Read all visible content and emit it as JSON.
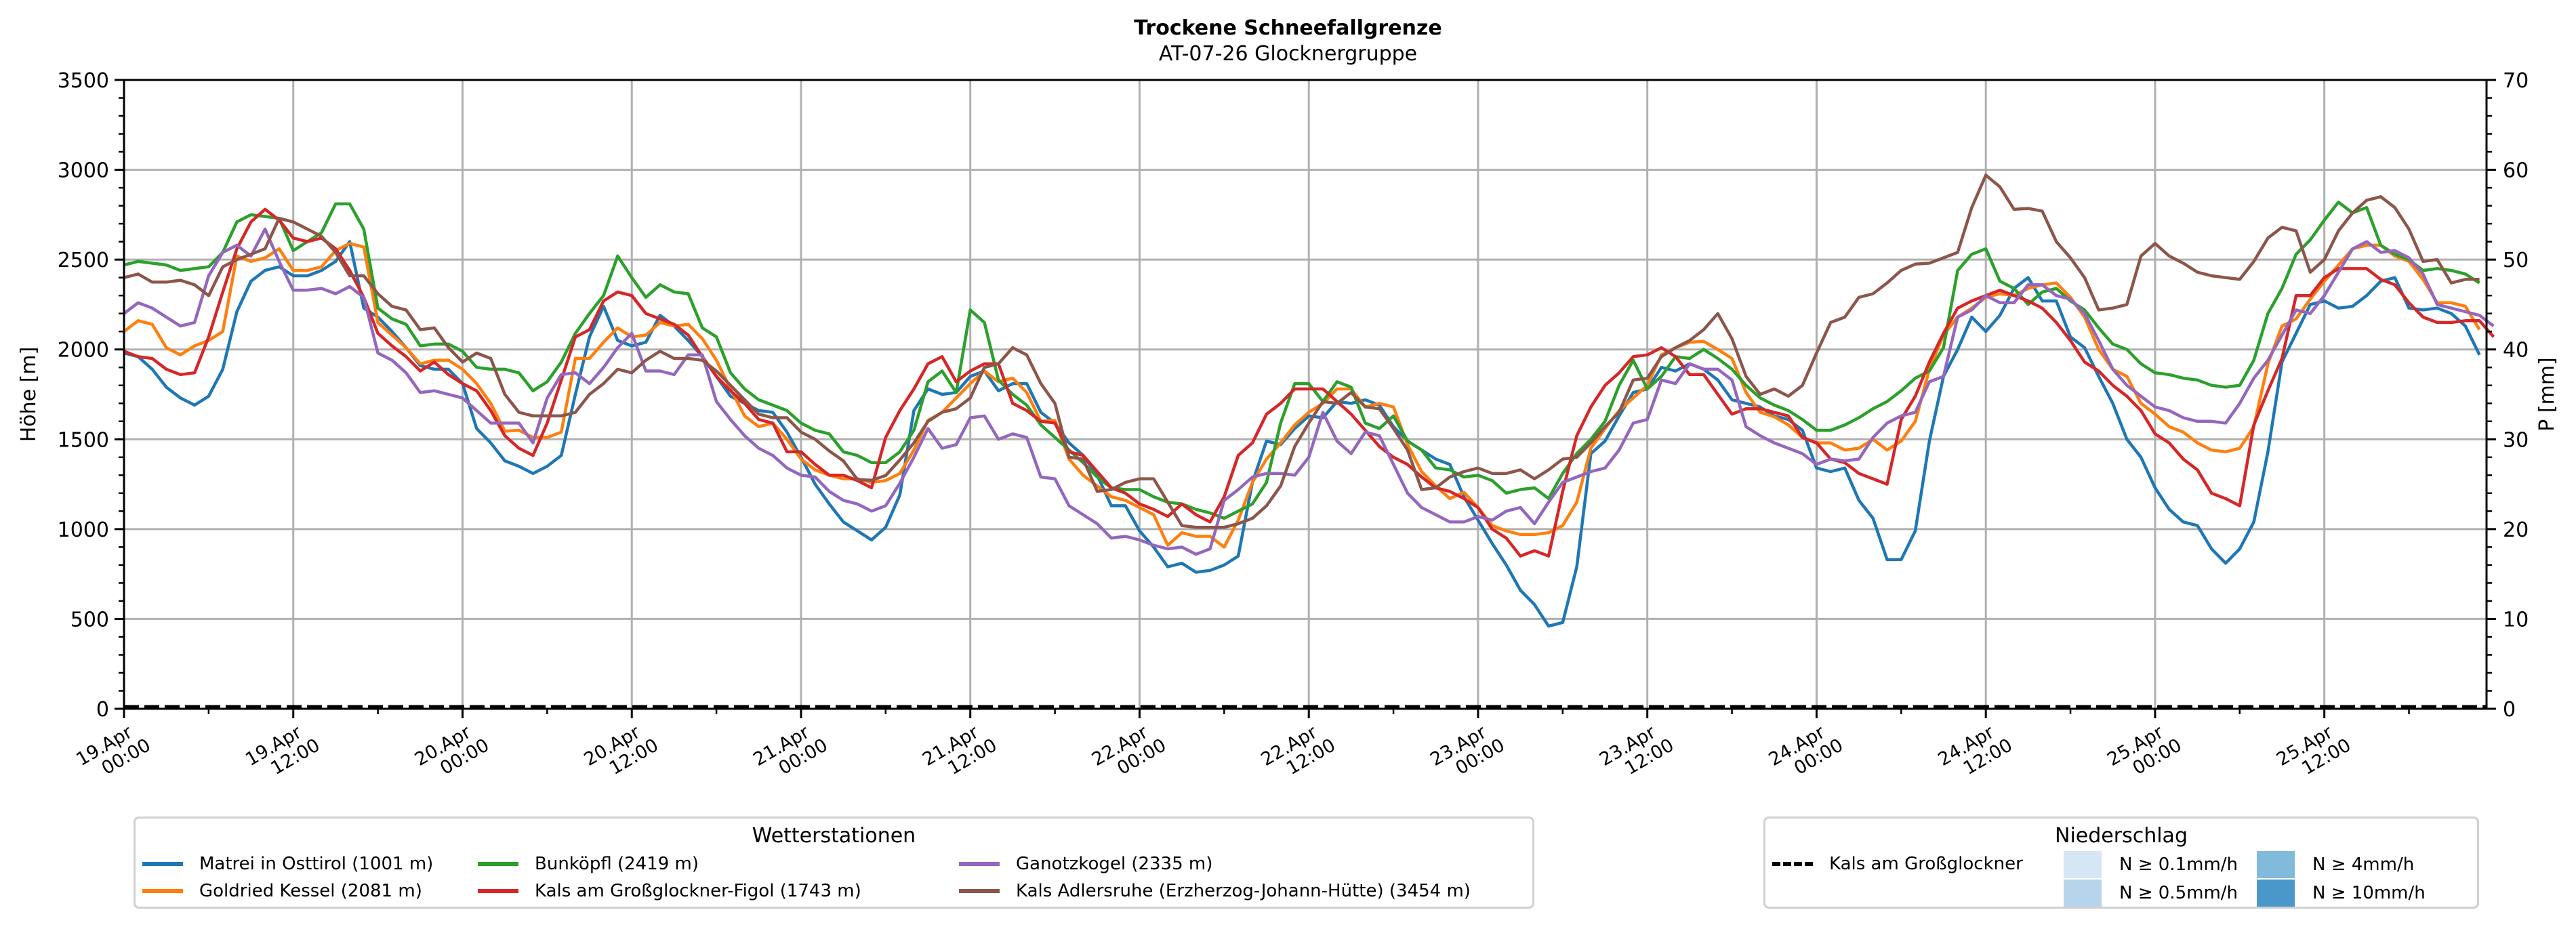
{
  "chart_data": {
    "type": "line",
    "title": "Trockene Schneefallgrenze",
    "subtitle": "AT-07-26 Glocknergruppe",
    "ylabel": "Höhe [m]",
    "ylabel_right": "P [mm]",
    "ylim": [
      0,
      3500
    ],
    "ylim_right": [
      0,
      70
    ],
    "yticks": [
      "0",
      "500",
      "1000",
      "1500",
      "2000",
      "2500",
      "3000",
      "3500"
    ],
    "yticks_right": [
      "0",
      "10",
      "20",
      "30",
      "40",
      "50",
      "60",
      "70"
    ],
    "x_unit": "hours since 19.Apr 00:00",
    "xlim": [
      0,
      167.5
    ],
    "xticks": [
      {
        "line1": "19.Apr",
        "line2": "00:00"
      },
      {
        "line1": "19.Apr",
        "line2": "12:00"
      },
      {
        "line1": "20.Apr",
        "line2": "00:00"
      },
      {
        "line1": "20.Apr",
        "line2": "12:00"
      },
      {
        "line1": "21.Apr",
        "line2": "00:00"
      },
      {
        "line1": "21.Apr",
        "line2": "12:00"
      },
      {
        "line1": "22.Apr",
        "line2": "00:00"
      },
      {
        "line1": "22.Apr",
        "line2": "12:00"
      },
      {
        "line1": "23.Apr",
        "line2": "00:00"
      },
      {
        "line1": "23.Apr",
        "line2": "12:00"
      },
      {
        "line1": "24.Apr",
        "line2": "00:00"
      },
      {
        "line1": "24.Apr",
        "line2": "12:00"
      },
      {
        "line1": "25.Apr",
        "line2": "00:00"
      },
      {
        "line1": "25.Apr",
        "line2": "12:00"
      }
    ],
    "grid": true,
    "legend_stations_title": "Wetterstationen",
    "legend_precip_title": "Niederschlag",
    "series": [
      {
        "name": "Matrei in Osttirol (1001 m)",
        "color": "#1f77b4",
        "values": [
          1980,
          1960,
          1890,
          1790,
          1730,
          1690,
          1740,
          1890,
          2210,
          2380,
          2440,
          2460,
          2410,
          2410,
          2440,
          2490,
          2600,
          2230,
          2180,
          2100,
          2010,
          1910,
          1890,
          1890,
          1810,
          1560,
          1480,
          1380,
          1350,
          1310,
          1350,
          1410,
          1750,
          2070,
          2240,
          2050,
          2020,
          2040,
          2190,
          2130,
          2050,
          1960,
          1850,
          1740,
          1700,
          1660,
          1650,
          1540,
          1400,
          1250,
          1140,
          1040,
          990,
          940,
          1010,
          1190,
          1660,
          1780,
          1750,
          1760,
          1850,
          1880,
          1770,
          1810,
          1810,
          1650,
          1590,
          1480,
          1410,
          1300,
          1130,
          1130,
          990,
          900,
          790,
          810,
          760,
          770,
          800,
          850,
          1260,
          1490,
          1470,
          1560,
          1630,
          1620,
          1710,
          1700,
          1720,
          1690,
          1570,
          1490,
          1440,
          1390,
          1360,
          1180,
          1050,
          920,
          800,
          660,
          580,
          460,
          480,
          790,
          1420,
          1490,
          1630,
          1760,
          1780,
          1900,
          1880,
          1920,
          1890,
          1830,
          1720,
          1700,
          1680,
          1630,
          1610,
          1550,
          1340,
          1320,
          1340,
          1160,
          1060,
          830,
          830,
          990,
          1490,
          1850,
          2000,
          2180,
          2100,
          2190,
          2340,
          2400,
          2270,
          2270,
          2070,
          2010,
          1850,
          1700,
          1500,
          1400,
          1230,
          1110,
          1040,
          1020,
          890,
          810,
          890,
          1040,
          1430,
          1930,
          2090,
          2250,
          2270,
          2230,
          2240,
          2300,
          2380,
          2400,
          2230,
          2220,
          2230,
          2200,
          2130,
          1970
        ]
      },
      {
        "name": "Goldried Kessel (2081 m)",
        "color": "#ff7f0e",
        "values": [
          2100,
          2160,
          2140,
          2010,
          1970,
          2020,
          2050,
          2100,
          2520,
          2490,
          2510,
          2560,
          2440,
          2440,
          2460,
          2550,
          2590,
          2570,
          2150,
          2080,
          2010,
          1920,
          1940,
          1940,
          1890,
          1810,
          1700,
          1545,
          1550,
          1510,
          1510,
          1540,
          1950,
          1950,
          2040,
          2120,
          2070,
          2080,
          2150,
          2130,
          2140,
          2060,
          1940,
          1780,
          1630,
          1570,
          1590,
          1500,
          1390,
          1330,
          1300,
          1280,
          1280,
          1260,
          1270,
          1310,
          1440,
          1605,
          1650,
          1730,
          1810,
          1880,
          1820,
          1840,
          1760,
          1600,
          1605,
          1390,
          1300,
          1240,
          1180,
          1160,
          1120,
          1080,
          910,
          980,
          960,
          960,
          900,
          1050,
          1260,
          1390,
          1480,
          1580,
          1650,
          1700,
          1780,
          1780,
          1680,
          1700,
          1680,
          1470,
          1320,
          1240,
          1170,
          1205,
          1120,
          1020,
          990,
          970,
          970,
          980,
          1020,
          1150,
          1450,
          1560,
          1660,
          1730,
          1800,
          1970,
          2010,
          2040,
          2045,
          2000,
          1950,
          1760,
          1650,
          1625,
          1580,
          1510,
          1480,
          1480,
          1440,
          1450,
          1500,
          1440,
          1490,
          1600,
          1890,
          2080,
          2180,
          2230,
          2290,
          2310,
          2300,
          2340,
          2360,
          2370,
          2290,
          2180,
          2000,
          1890,
          1850,
          1700,
          1640,
          1570,
          1540,
          1480,
          1440,
          1430,
          1450,
          1570,
          1920,
          2130,
          2170,
          2280,
          2380,
          2470,
          2560,
          2580,
          2580,
          2520,
          2490,
          2390,
          2260,
          2260,
          2240,
          2110
        ]
      },
      {
        "name": "Bunköpfl (2419 m)",
        "color": "#2ca02c",
        "values": [
          2470,
          2490,
          2480,
          2470,
          2440,
          2450,
          2460,
          2540,
          2710,
          2750,
          2740,
          2730,
          2550,
          2600,
          2650,
          2810,
          2810,
          2670,
          2230,
          2170,
          2140,
          2020,
          2030,
          2030,
          1990,
          1900,
          1890,
          1890,
          1870,
          1770,
          1820,
          1930,
          2090,
          2200,
          2300,
          2520,
          2400,
          2290,
          2360,
          2320,
          2310,
          2120,
          2070,
          1870,
          1780,
          1720,
          1690,
          1660,
          1590,
          1550,
          1530,
          1430,
          1410,
          1370,
          1370,
          1430,
          1550,
          1820,
          1880,
          1760,
          2220,
          2150,
          1830,
          1750,
          1690,
          1580,
          1510,
          1440,
          1370,
          1290,
          1230,
          1220,
          1220,
          1180,
          1150,
          1140,
          1110,
          1090,
          1060,
          1100,
          1140,
          1260,
          1590,
          1810,
          1810,
          1710,
          1820,
          1790,
          1590,
          1560,
          1630,
          1490,
          1440,
          1340,
          1330,
          1290,
          1300,
          1270,
          1200,
          1220,
          1230,
          1170,
          1310,
          1420,
          1500,
          1600,
          1800,
          1940,
          1780,
          1850,
          1960,
          1950,
          2000,
          1950,
          1890,
          1800,
          1730,
          1690,
          1660,
          1610,
          1550,
          1550,
          1580,
          1620,
          1670,
          1710,
          1770,
          1840,
          1880,
          2010,
          2440,
          2530,
          2560,
          2380,
          2340,
          2250,
          2320,
          2340,
          2270,
          2220,
          2120,
          2030,
          2000,
          1920,
          1870,
          1860,
          1840,
          1830,
          1800,
          1790,
          1800,
          1940,
          2200,
          2340,
          2530,
          2610,
          2720,
          2820,
          2760,
          2790,
          2580,
          2530,
          2500,
          2440,
          2450,
          2440,
          2420,
          2370
        ]
      },
      {
        "name": "Kals am Großglockner-Figol (1743 m)",
        "color": "#d62728",
        "values": [
          1990,
          1960,
          1950,
          1890,
          1860,
          1870,
          2070,
          2320,
          2560,
          2710,
          2780,
          2720,
          2620,
          2600,
          2620,
          2560,
          2440,
          2290,
          2090,
          2020,
          1960,
          1880,
          1930,
          1860,
          1810,
          1770,
          1660,
          1520,
          1450,
          1410,
          1590,
          1830,
          2070,
          2110,
          2270,
          2320,
          2300,
          2200,
          2170,
          2140,
          2080,
          1960,
          1850,
          1770,
          1700,
          1610,
          1590,
          1430,
          1430,
          1360,
          1300,
          1300,
          1270,
          1230,
          1510,
          1660,
          1780,
          1920,
          1960,
          1820,
          1880,
          1920,
          1920,
          1700,
          1660,
          1600,
          1590,
          1430,
          1410,
          1320,
          1230,
          1200,
          1140,
          1110,
          1070,
          1140,
          1080,
          1040,
          1180,
          1410,
          1480,
          1640,
          1700,
          1780,
          1780,
          1780,
          1710,
          1640,
          1550,
          1460,
          1400,
          1360,
          1290,
          1230,
          1210,
          1170,
          1120,
          1000,
          950,
          850,
          880,
          850,
          1210,
          1520,
          1680,
          1800,
          1870,
          1960,
          1970,
          2010,
          1960,
          1860,
          1860,
          1750,
          1640,
          1670,
          1670,
          1650,
          1630,
          1510,
          1480,
          1390,
          1370,
          1310,
          1280,
          1250,
          1610,
          1740,
          1930,
          2090,
          2230,
          2270,
          2300,
          2330,
          2300,
          2270,
          2230,
          2150,
          2050,
          1930,
          1880,
          1800,
          1740,
          1660,
          1530,
          1480,
          1390,
          1330,
          1200,
          1170,
          1130,
          1580,
          1770,
          1950,
          2300,
          2300,
          2400,
          2450,
          2450,
          2450,
          2390,
          2360,
          2260,
          2180,
          2150,
          2150,
          2160,
          2160,
          2070
        ]
      },
      {
        "name": "Ganotzkogel (2335 m)",
        "color": "#9467bd",
        "values": [
          2200,
          2260,
          2230,
          2180,
          2130,
          2150,
          2410,
          2540,
          2580,
          2520,
          2670,
          2490,
          2330,
          2330,
          2340,
          2310,
          2350,
          2290,
          1980,
          1940,
          1870,
          1760,
          1770,
          1750,
          1730,
          1660,
          1590,
          1590,
          1590,
          1480,
          1730,
          1860,
          1870,
          1810,
          1900,
          2010,
          2090,
          1880,
          1880,
          1860,
          1970,
          1970,
          1710,
          1610,
          1520,
          1450,
          1410,
          1340,
          1300,
          1290,
          1210,
          1160,
          1140,
          1100,
          1130,
          1255,
          1400,
          1560,
          1450,
          1470,
          1620,
          1630,
          1500,
          1530,
          1510,
          1290,
          1280,
          1130,
          1080,
          1030,
          950,
          960,
          940,
          910,
          890,
          900,
          860,
          890,
          1160,
          1220,
          1290,
          1310,
          1310,
          1300,
          1400,
          1650,
          1490,
          1420,
          1540,
          1520,
          1360,
          1200,
          1120,
          1080,
          1040,
          1040,
          1070,
          1050,
          1100,
          1120,
          1030,
          1150,
          1260,
          1290,
          1320,
          1340,
          1440,
          1590,
          1610,
          1830,
          1810,
          1920,
          1890,
          1890,
          1830,
          1570,
          1520,
          1480,
          1450,
          1420,
          1360,
          1390,
          1380,
          1390,
          1510,
          1590,
          1630,
          1650,
          1820,
          1850,
          2180,
          2220,
          2300,
          2260,
          2260,
          2360,
          2360,
          2300,
          2280,
          2200,
          2050,
          1890,
          1800,
          1740,
          1680,
          1660,
          1620,
          1600,
          1600,
          1590,
          1700,
          1840,
          1940,
          2080,
          2220,
          2200,
          2300,
          2430,
          2560,
          2600,
          2540,
          2550,
          2510,
          2420,
          2250,
          2230,
          2210,
          2190,
          2130
        ]
      },
      {
        "name": "Kals Adlersruhe (Erzherzog-Johann-Hütte) (3454 m)",
        "color": "#8c564b",
        "values": [
          2400,
          2420,
          2375,
          2375,
          2385,
          2360,
          2300,
          2460,
          2500,
          2530,
          2560,
          2730,
          2710,
          2670,
          2630,
          2540,
          2410,
          2410,
          2310,
          2240,
          2220,
          2110,
          2120,
          2010,
          1930,
          1980,
          1950,
          1750,
          1650,
          1630,
          1630,
          1630,
          1650,
          1750,
          1810,
          1890,
          1870,
          1940,
          1990,
          1950,
          1950,
          1940,
          1880,
          1800,
          1720,
          1640,
          1620,
          1620,
          1540,
          1500,
          1435,
          1380,
          1276,
          1272,
          1298,
          1385,
          1480,
          1600,
          1650,
          1670,
          1730,
          1900,
          1920,
          2010,
          1970,
          1810,
          1700,
          1400,
          1390,
          1210,
          1220,
          1260,
          1280,
          1280,
          1150,
          1020,
          1010,
          1010,
          1010,
          1030,
          1060,
          1130,
          1240,
          1460,
          1590,
          1710,
          1700,
          1760,
          1680,
          1670,
          1560,
          1440,
          1220,
          1230,
          1290,
          1320,
          1340,
          1310,
          1310,
          1330,
          1280,
          1330,
          1390,
          1400,
          1480,
          1570,
          1650,
          1830,
          1840,
          1960,
          2010,
          2050,
          2110,
          2200,
          2060,
          1850,
          1750,
          1780,
          1740,
          1800,
          1980,
          2150,
          2180,
          2290,
          2310,
          2370,
          2440,
          2475,
          2480,
          2510,
          2540,
          2790,
          2970,
          2905,
          2780,
          2785,
          2770,
          2600,
          2510,
          2400,
          2220,
          2230,
          2250,
          2520,
          2590,
          2520,
          2480,
          2430,
          2410,
          2400,
          2390,
          2490,
          2620,
          2680,
          2660,
          2430,
          2500,
          2660,
          2760,
          2830,
          2850,
          2790,
          2670,
          2490,
          2500,
          2370,
          2390,
          2390
        ]
      }
    ],
    "precip_series": {
      "name": "Kals am Großglockner",
      "style": "dashed",
      "color": "#000000",
      "values_mm": [
        0
      ]
    },
    "precip_classes": [
      {
        "label": "N ≥ 0.1mm/h",
        "color": "#d6e6f4"
      },
      {
        "label": "N ≥ 0.5mm/h",
        "color": "#b7d4ea"
      },
      {
        "label": "N ≥ 4mm/h",
        "color": "#82badb"
      },
      {
        "label": "N ≥ 10mm/h",
        "color": "#4a98c9"
      }
    ]
  }
}
